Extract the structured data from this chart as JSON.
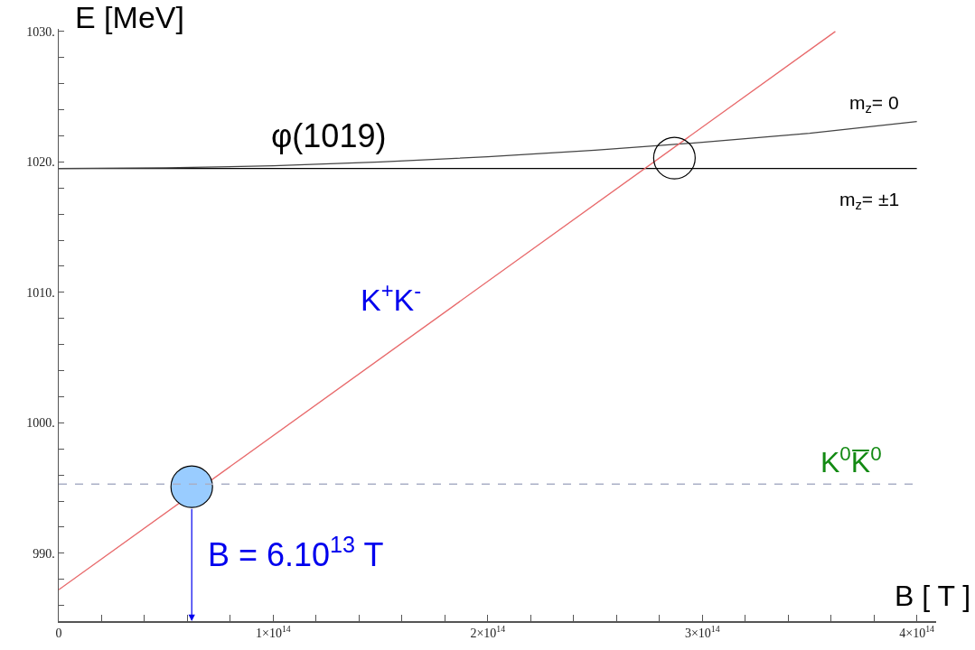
{
  "chart_data": {
    "type": "line",
    "xlabel": "B [ T ]",
    "ylabel": "E [MeV]",
    "xlim": [
      0,
      409000000000000.0
    ],
    "ylim": [
      984.8,
      1030.2
    ],
    "xticks": [
      {
        "value": 0,
        "label": "0"
      },
      {
        "value": 20000000000000.0,
        "label": null
      },
      {
        "value": 40000000000000.0,
        "label": null
      },
      {
        "value": 60000000000000.0,
        "label": null
      },
      {
        "value": 80000000000000.0,
        "label": null
      },
      {
        "value": 100000000000000.0,
        "label": "1×10$^{14}$"
      },
      {
        "value": 120000000000000.0,
        "label": null
      },
      {
        "value": 140000000000000.0,
        "label": null
      },
      {
        "value": 160000000000000.0,
        "label": null
      },
      {
        "value": 180000000000000.0,
        "label": null
      },
      {
        "value": 200000000000000.0,
        "label": "2×10$^{14}$"
      },
      {
        "value": 220000000000000.0,
        "label": null
      },
      {
        "value": 240000000000000.0,
        "label": null
      },
      {
        "value": 260000000000000.0,
        "label": null
      },
      {
        "value": 280000000000000.0,
        "label": null
      },
      {
        "value": 300000000000000.0,
        "label": "3×10$^{14}$"
      },
      {
        "value": 320000000000000.0,
        "label": null
      },
      {
        "value": 340000000000000.0,
        "label": null
      },
      {
        "value": 360000000000000.0,
        "label": null
      },
      {
        "value": 380000000000000.0,
        "label": null
      },
      {
        "value": 400000000000000.0,
        "label": "4×10$^{14}$"
      }
    ],
    "yticks": [
      {
        "value": 986,
        "label": null
      },
      {
        "value": 988,
        "label": null
      },
      {
        "value": 990,
        "label": "990."
      },
      {
        "value": 992,
        "label": null
      },
      {
        "value": 994,
        "label": null
      },
      {
        "value": 996,
        "label": null
      },
      {
        "value": 998,
        "label": null
      },
      {
        "value": 1000,
        "label": "1000."
      },
      {
        "value": 1002,
        "label": null
      },
      {
        "value": 1004,
        "label": null
      },
      {
        "value": 1006,
        "label": null
      },
      {
        "value": 1008,
        "label": null
      },
      {
        "value": 1010,
        "label": "1010."
      },
      {
        "value": 1012,
        "label": null
      },
      {
        "value": 1014,
        "label": null
      },
      {
        "value": 1016,
        "label": null
      },
      {
        "value": 1018,
        "label": null
      },
      {
        "value": 1020,
        "label": "1020."
      },
      {
        "value": 1022,
        "label": null
      },
      {
        "value": 1024,
        "label": null
      },
      {
        "value": 1026,
        "label": null
      },
      {
        "value": 1028,
        "label": null
      },
      {
        "value": 1030,
        "label": "1030."
      }
    ],
    "grid": false,
    "line_style": "solid",
    "series": [
      {
        "color": "#000000",
        "x": [
          0,
          400000000000000.0
        ],
        "values": [
          1019.5,
          1019.5
        ]
      },
      {
        "color": "#444444",
        "x": [
          0,
          50000000000000.0,
          100000000000000.0,
          150000000000000.0,
          200000000000000.0,
          250000000000000.0,
          300000000000000.0,
          350000000000000.0,
          400000000000000.0
        ],
        "values": [
          1019.5,
          1019.55,
          1019.7,
          1020.0,
          1020.4,
          1020.9,
          1021.5,
          1022.2,
          1023.1
        ]
      },
      {
        "color": "#e8696b",
        "x": [
          0,
          362000000000000.0
        ],
        "values": [
          987.2,
          1030
        ]
      },
      {
        "type": "scatter",
        "marker": "circle",
        "color": "#99ccff",
        "x": [
          62000000000000.0
        ],
        "values": [
          995.1
        ]
      },
      {
        "type": "scatter",
        "marker": "circle",
        "color": null,
        "x": [
          287000000000000.0
        ],
        "values": [
          1020.3
        ]
      }
    ],
    "ref_lines": [
      {
        "axis": "y",
        "value": 995.3,
        "label": "K$^{0}$K̅$^{0}$",
        "color": "#a9afc6",
        "line_style": "dashed"
      }
    ],
    "annotations": [
      "φ(1019)",
      "m$_{z}$= 0",
      "m$_{z}$= ±1",
      "K$^{+}$K$^{-}$",
      "B = 6.10$^{13}$ T"
    ]
  }
}
